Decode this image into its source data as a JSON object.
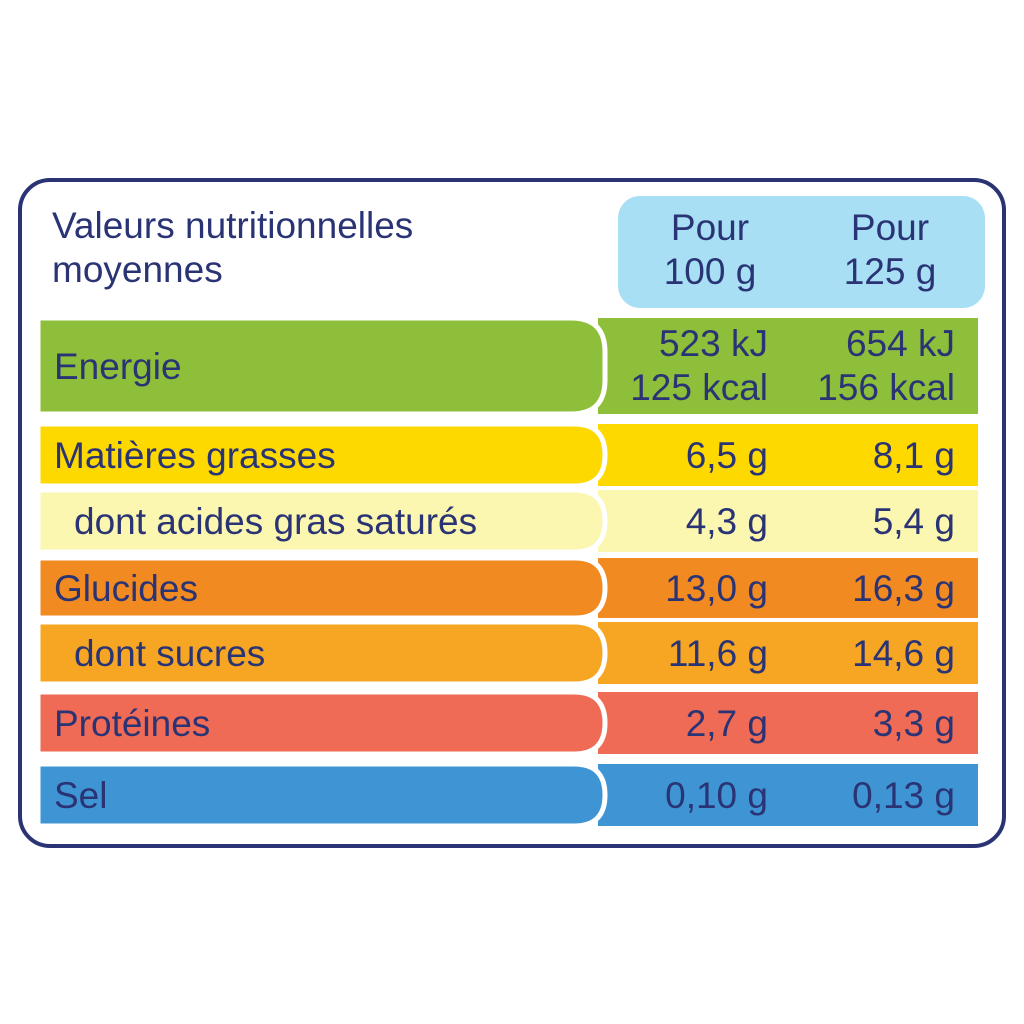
{
  "header": {
    "title": [
      "Valeurs nutritionnelles",
      "moyennes"
    ],
    "columns": [
      [
        "Pour",
        "100 g"
      ],
      [
        "Pour",
        "125 g"
      ]
    ]
  },
  "rows": [
    {
      "label": "Energie",
      "values": [
        [
          "523 kJ",
          "125 kcal"
        ],
        [
          "654 kJ",
          "156 kcal"
        ]
      ],
      "color": "#8dbf3a"
    },
    {
      "label": "Matières grasses",
      "values": [
        "6,5 g",
        "8,1 g"
      ],
      "color": "#fdd900"
    },
    {
      "label": "dont acides gras saturés",
      "values": [
        "4,3 g",
        "5,4 g"
      ],
      "color": "#fbf6b0"
    },
    {
      "label": "Glucides",
      "values": [
        "13,0 g",
        "16,3 g"
      ],
      "color": "#f28a22"
    },
    {
      "label": "dont sucres",
      "values": [
        "11,6 g",
        "14,6 g"
      ],
      "color": "#f6a623"
    },
    {
      "label": "Protéines",
      "values": [
        "2,7 g",
        "3,3 g"
      ],
      "color": "#ef6b55"
    },
    {
      "label": "Sel",
      "values": [
        "0,10 g",
        "0,13 g"
      ],
      "color": "#3f95d4"
    }
  ]
}
